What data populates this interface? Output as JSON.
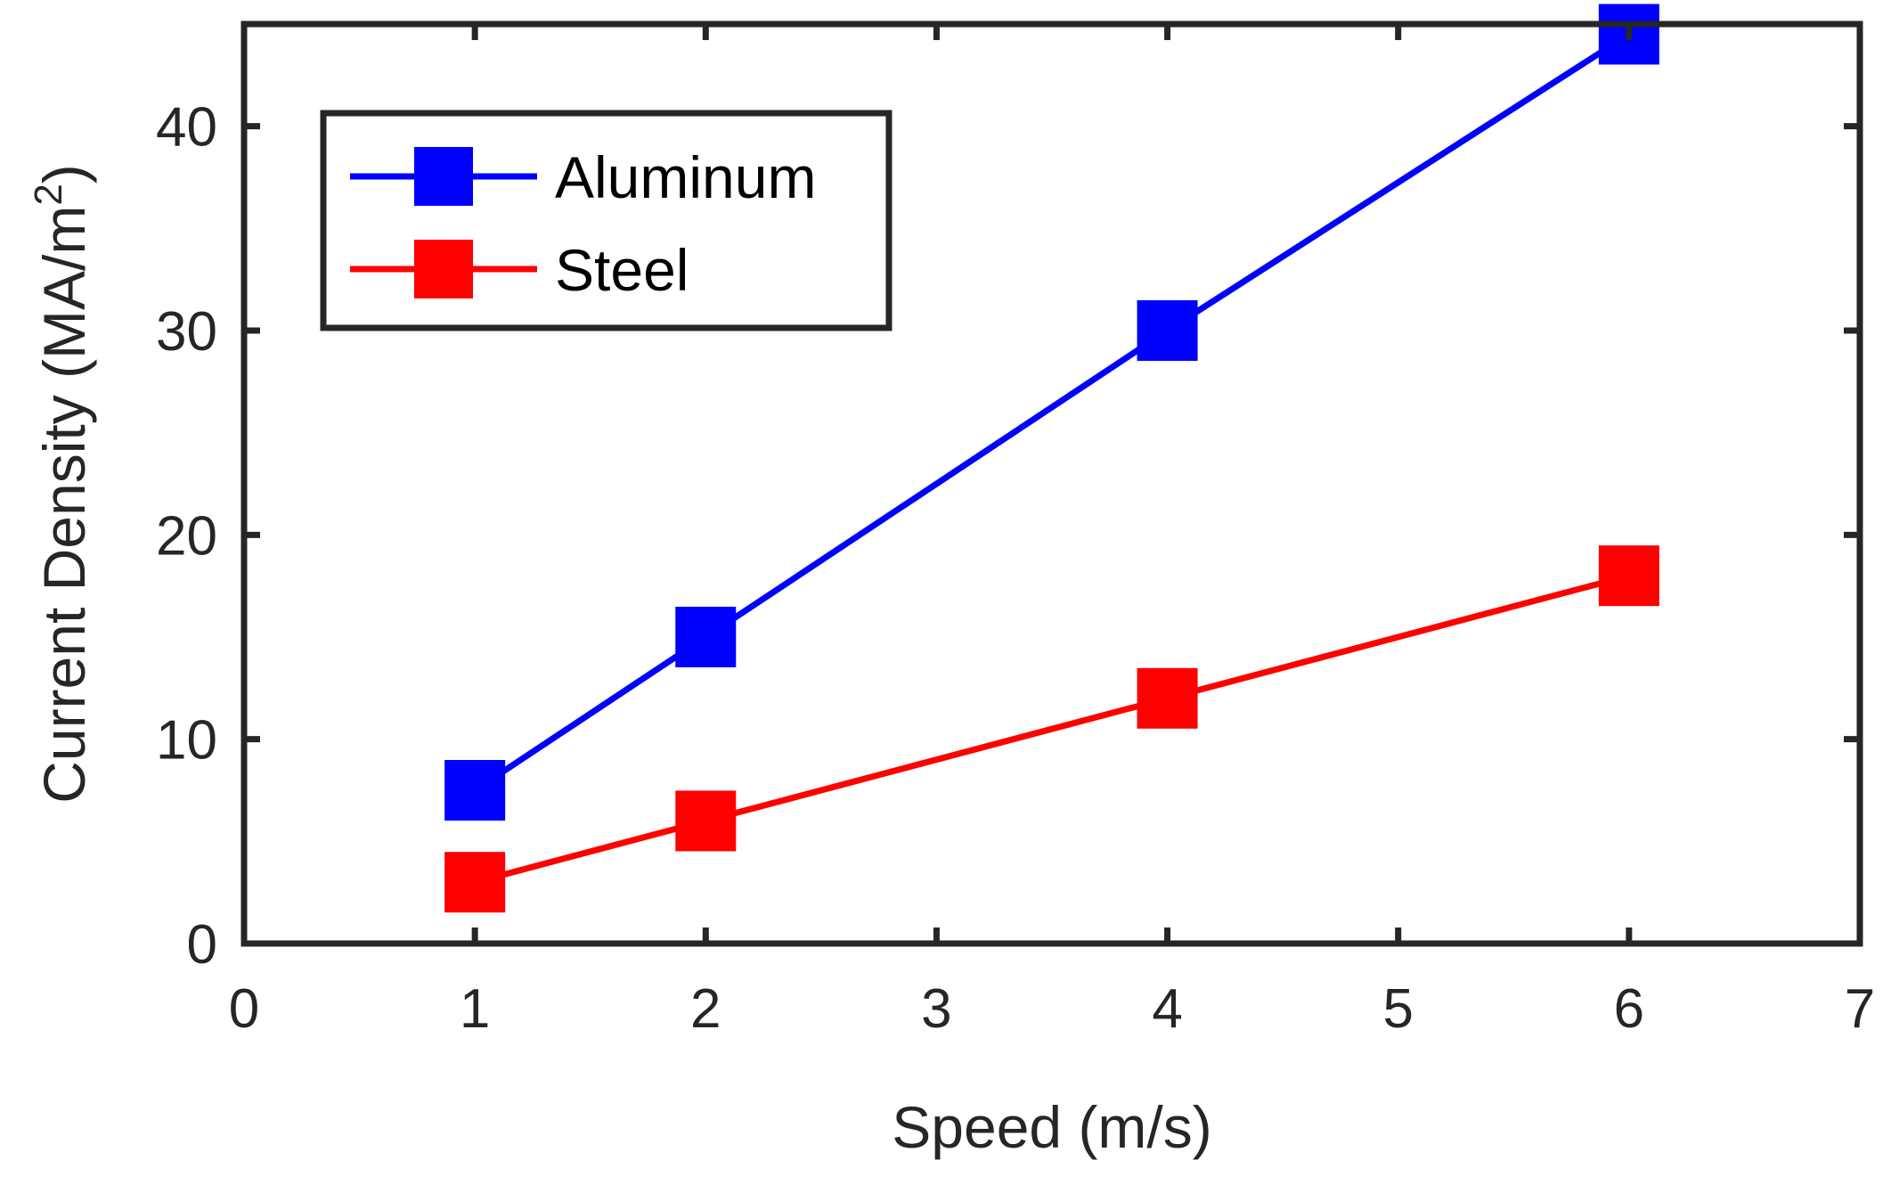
{
  "chart_data": {
    "type": "line",
    "title": "",
    "xlabel": "Speed (m/s)",
    "ylabel_main": "Current Density (MA/m",
    "ylabel_sup": "2",
    "ylabel_close": ")",
    "xlim": [
      0,
      7
    ],
    "ylim": [
      0,
      45
    ],
    "xticks": [
      0,
      1,
      2,
      3,
      4,
      5,
      6,
      7
    ],
    "xtick_labels": [
      "0",
      "1",
      "2",
      "3",
      "4",
      "5",
      "6",
      "7"
    ],
    "yticks": [
      0,
      10,
      20,
      30,
      40
    ],
    "ytick_labels": [
      "0",
      "10",
      "20",
      "30",
      "40"
    ],
    "grid": false,
    "legend_position": "top-left",
    "series": [
      {
        "name": "Aluminum",
        "color": "#0000ff",
        "marker": "square",
        "x": [
          1,
          2,
          4,
          6
        ],
        "y": [
          7.5,
          15,
          30,
          44.5
        ]
      },
      {
        "name": "Steel",
        "color": "#ff0000",
        "marker": "square",
        "x": [
          1,
          2,
          4,
          6
        ],
        "y": [
          3,
          6,
          12,
          18
        ]
      }
    ]
  }
}
